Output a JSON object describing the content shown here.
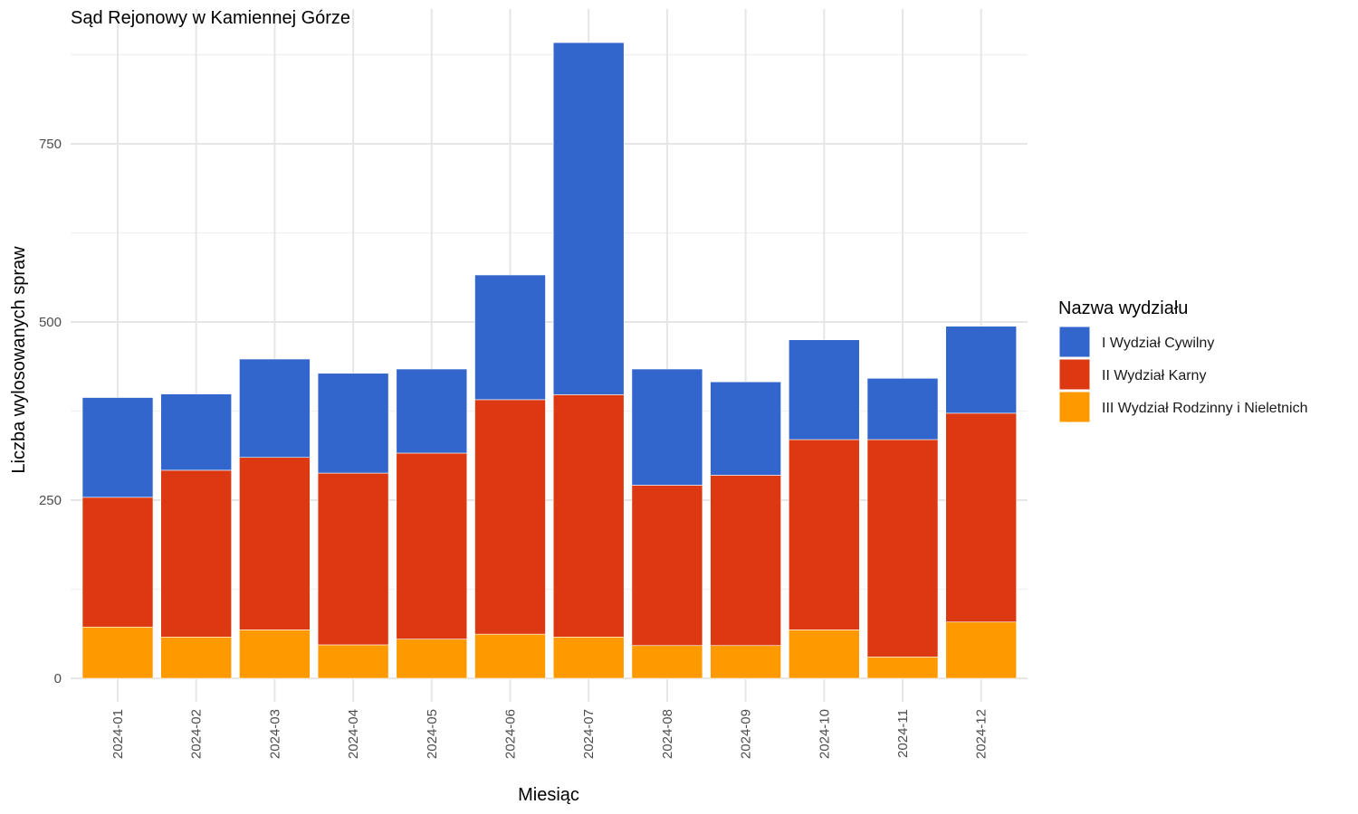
{
  "chart_data": {
    "type": "bar",
    "stacked": true,
    "title": "Sąd Rejonowy w Kamiennej Górze",
    "xlabel": "Miesiąc",
    "ylabel": "Liczba wylosowanych spraw",
    "ylim": [
      0,
      900
    ],
    "yticks": [
      0,
      250,
      500,
      750
    ],
    "grid": true,
    "legend_title": "Nazwa wydziału",
    "legend_position": "right",
    "categories": [
      "2024-01",
      "2024-02",
      "2024-03",
      "2024-04",
      "2024-05",
      "2024-06",
      "2024-07",
      "2024-08",
      "2024-09",
      "2024-10",
      "2024-11",
      "2024-12"
    ],
    "series": [
      {
        "name": "III Wydział Rodzinny i Nieletnich",
        "color": "#FF9900",
        "values": [
          72,
          58,
          68,
          47,
          55,
          62,
          58,
          46,
          46,
          68,
          30,
          79
        ]
      },
      {
        "name": "II Wydział Karny",
        "color": "#DC3912",
        "values": [
          182,
          234,
          242,
          241,
          261,
          329,
          340,
          225,
          239,
          267,
          305,
          293
        ]
      },
      {
        "name": "I Wydział Cywilny",
        "color": "#3366CC",
        "values": [
          140,
          107,
          138,
          140,
          118,
          175,
          494,
          163,
          131,
          140,
          86,
          122
        ]
      }
    ]
  }
}
